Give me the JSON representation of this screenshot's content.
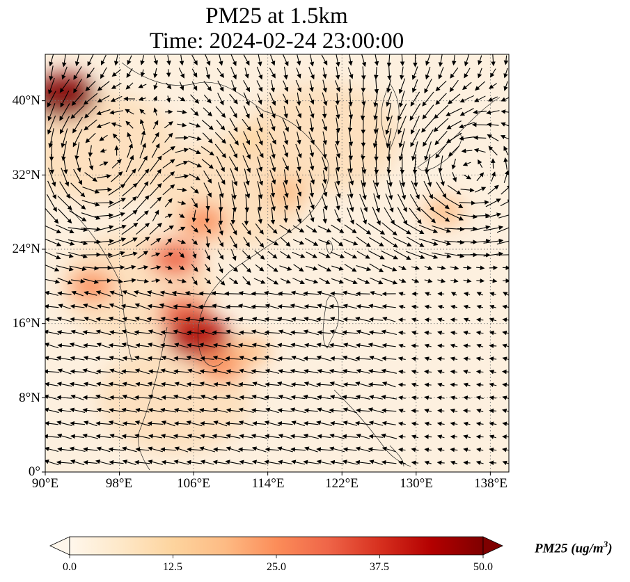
{
  "title": {
    "line1": "PM25 at 1.5km",
    "line2": "Time: 2024-02-24 23:00:00"
  },
  "map": {
    "lon_range": [
      90,
      140
    ],
    "lat_range": [
      0,
      45
    ],
    "lat_ticks": [
      {
        "value": 0,
        "label": "0°"
      },
      {
        "value": 8,
        "label": "8°N"
      },
      {
        "value": 16,
        "label": "16°N"
      },
      {
        "value": 24,
        "label": "24°N"
      },
      {
        "value": 32,
        "label": "32°N"
      },
      {
        "value": 40,
        "label": "40°N"
      }
    ],
    "lon_ticks": [
      {
        "value": 90,
        "label": "90°E"
      },
      {
        "value": 98,
        "label": "98°E"
      },
      {
        "value": 106,
        "label": "106°E"
      },
      {
        "value": 114,
        "label": "114°E"
      },
      {
        "value": 122,
        "label": "122°E"
      },
      {
        "value": 130,
        "label": "130°E"
      },
      {
        "value": 138,
        "label": "138°E"
      }
    ],
    "gridlines": "dotted",
    "field": "PM25 concentration with wind vectors"
  },
  "colorbar": {
    "colormap": "OrRd",
    "range": [
      0,
      50
    ],
    "extend": "both",
    "ticks": [
      "0.0",
      "12.5",
      "25.0",
      "37.5",
      "50.0"
    ],
    "unit_label": "PM25 (ug/m",
    "unit_superscript": "3",
    "unit_close": ")",
    "colors": [
      "#fff7ec",
      "#fee8c8",
      "#fdd49e",
      "#fdbb84",
      "#fc8d59",
      "#ef6548",
      "#d7301f",
      "#b30000",
      "#7f0000"
    ]
  },
  "pm25_hotspots": [
    {
      "lon": 92,
      "lat": 40.5,
      "value": 48
    },
    {
      "lon": 104,
      "lat": 23,
      "value": 30
    },
    {
      "lon": 107,
      "lat": 27,
      "value": 24
    },
    {
      "lon": 105,
      "lat": 17,
      "value": 33
    },
    {
      "lon": 106.5,
      "lat": 14.5,
      "value": 46
    },
    {
      "lon": 95,
      "lat": 20,
      "value": 22
    },
    {
      "lon": 109,
      "lat": 11.5,
      "value": 26
    },
    {
      "lon": 112,
      "lat": 13,
      "value": 20
    },
    {
      "lon": 116,
      "lat": 30,
      "value": 16
    },
    {
      "lon": 112,
      "lat": 36,
      "value": 14
    },
    {
      "lon": 133,
      "lat": 28,
      "value": 18
    }
  ]
}
